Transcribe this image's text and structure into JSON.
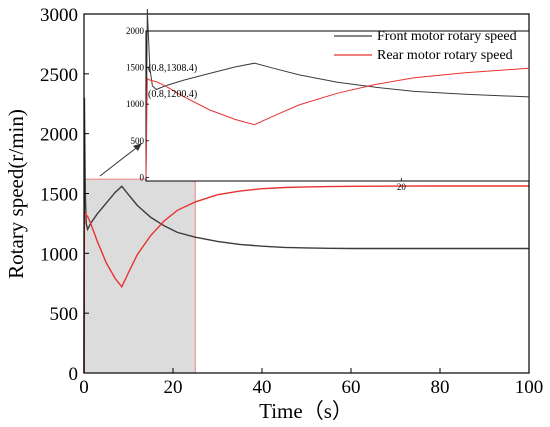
{
  "chart_data": {
    "type": "line",
    "xlabel": "Time（s）",
    "ylabel": "Rotary speed(r/min)",
    "xlim": [
      0,
      100
    ],
    "ylim": [
      0,
      3000
    ],
    "xticks": [
      "0",
      "20",
      "40",
      "60",
      "80",
      "100"
    ],
    "yticks": [
      "0",
      "500",
      "1000",
      "1500",
      "2000",
      "2500",
      "3000"
    ],
    "legend_position": "top-right",
    "series": [
      {
        "name": "Front motor rotary speed",
        "color": "#3c3c3c",
        "x": [
          0,
          0.1,
          0.3,
          0.5,
          0.8,
          1.5,
          3,
          5,
          7,
          8.5,
          10,
          12,
          15,
          18,
          21,
          25,
          30,
          35,
          40,
          45,
          50,
          55,
          60,
          70,
          80,
          90,
          100
        ],
        "y": [
          0,
          2300,
          1500,
          1250,
          1200.4,
          1250,
          1330,
          1420,
          1510,
          1560,
          1490,
          1400,
          1300,
          1230,
          1175,
          1135,
          1100,
          1075,
          1060,
          1050,
          1045,
          1042,
          1040,
          1040,
          1040,
          1040,
          1040
        ]
      },
      {
        "name": "Rear motor rotary speed",
        "color": "#e8322f",
        "x": [
          0,
          0.1,
          0.3,
          0.5,
          0.8,
          1.5,
          3,
          5,
          7,
          8.5,
          10,
          12,
          15,
          18,
          21,
          25,
          30,
          35,
          40,
          45,
          50,
          55,
          60,
          70,
          80,
          90,
          100
        ],
        "y": [
          0,
          1350,
          1330,
          1320,
          1308.4,
          1250,
          1100,
          920,
          790,
          720,
          840,
          990,
          1150,
          1270,
          1360,
          1430,
          1490,
          1520,
          1540,
          1550,
          1555,
          1558,
          1560,
          1562,
          1563,
          1563,
          1563
        ]
      }
    ],
    "annotations": [
      "(0.8,1308.4)",
      "(0.8,1200.4)"
    ],
    "highlight_region": {
      "x": [
        0,
        25
      ],
      "y": [
        0,
        1620
      ]
    },
    "inset": {
      "xlim": [
        0,
        30
      ],
      "ylim": [
        -50,
        2000
      ],
      "xticks": [
        "20"
      ],
      "yticks": [
        "0",
        "500",
        "1000",
        "1500",
        "2000"
      ]
    }
  }
}
